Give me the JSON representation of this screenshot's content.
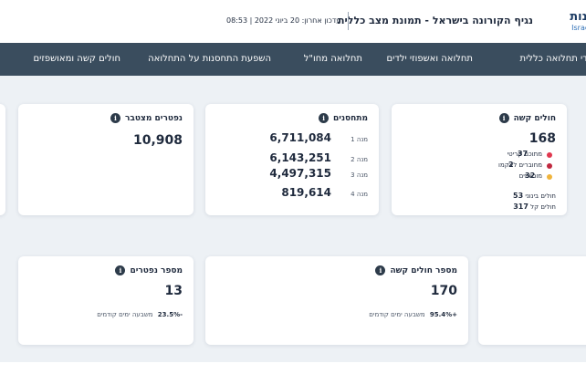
{
  "header": {
    "logo_he": "ונות",
    "logo_en": "Israel",
    "title": "נגיף הקורונה בישראל - תמונת מצב כללית",
    "update": "עדכון אחרון: 20 ביוני 2022 | 08:53"
  },
  "nav": {
    "items": [
      {
        "label": "מדדי תחלואה כללית"
      },
      {
        "label": "תחלואה ואשפוזי ילדים"
      },
      {
        "label": "תחלואה מחו\"ל"
      },
      {
        "label": "השפעת התחסנות על התחלואה"
      },
      {
        "label": "חולים קשה ומאושפזים"
      }
    ]
  },
  "cards": {
    "severe": {
      "title": "חולים קשה",
      "value": "168",
      "breakdown": [
        {
          "label": "מתוכם קריטי",
          "value": "37",
          "color": "#e0384f"
        },
        {
          "label": "מחוברים לאקמו",
          "value": "2",
          "color": "#c0283f"
        },
        {
          "label": "מונשמים",
          "value": "32",
          "color": "#f0b43c"
        }
      ],
      "sub": [
        {
          "label": "חולים בינוני",
          "value": "53"
        },
        {
          "label": "חולים קל",
          "value": "317"
        }
      ]
    },
    "vaccinated": {
      "title": "מתחסנים",
      "doses": [
        {
          "label": "מנה 1",
          "value": "6,711,084"
        },
        {
          "label": "מנה 2",
          "value": "6,143,251"
        },
        {
          "label": "מנה 3",
          "value": "4,497,315"
        },
        {
          "label": "מנה 4",
          "value": "819,614"
        }
      ]
    },
    "deaths_total": {
      "title": "נפטרים מצטבר",
      "value": "10,908"
    },
    "severe_count": {
      "title": "מספר חולים קשה",
      "value": "170",
      "change": "+95.4%",
      "change_label": "משבעה ימים קודמים"
    },
    "deaths_count": {
      "title": "מספר נפטרים",
      "value": "13",
      "change": "-23.5%",
      "change_label": "משבעה ימים קודמים"
    }
  },
  "icons": {
    "info": "i"
  }
}
